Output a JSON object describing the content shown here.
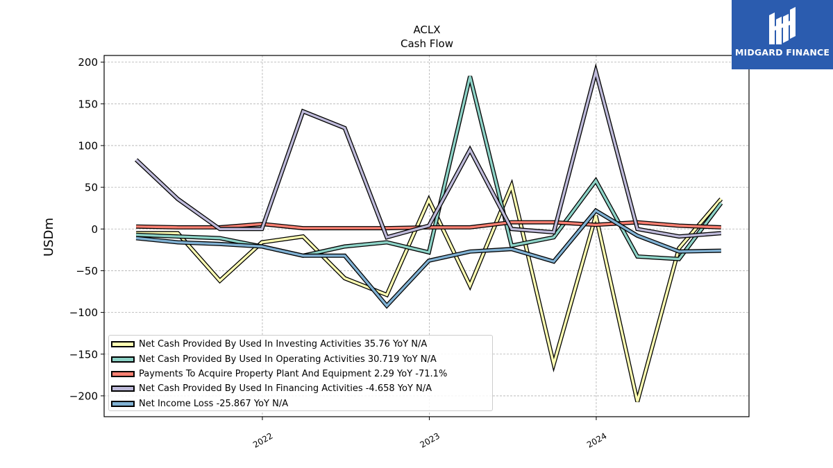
{
  "chart_data": {
    "type": "line",
    "title": "ACLX",
    "subtitle": "Cash Flow",
    "ylabel": "USDm",
    "xlabel": "",
    "ylim": [
      -225,
      208
    ],
    "xlim": [
      "2021-01-20",
      "2024-11-30"
    ],
    "yticks": [
      200,
      150,
      100,
      50,
      0,
      -50,
      -100,
      -150,
      -200
    ],
    "ytick_labels": [
      "200",
      "150",
      "100",
      "50",
      "0",
      "−50",
      "−100",
      "−150",
      "−200"
    ],
    "xticks": [
      "2022-01-01",
      "2023-01-01",
      "2024-01-01"
    ],
    "xtick_labels": [
      "2022",
      "2023",
      "2024"
    ],
    "grid": true,
    "legend_position": "bottom-left",
    "x": [
      "2021-03-31",
      "2021-06-30",
      "2021-09-30",
      "2021-12-31",
      "2022-03-31",
      "2022-06-30",
      "2022-09-30",
      "2022-12-31",
      "2023-03-31",
      "2023-06-30",
      "2023-09-30",
      "2023-12-31",
      "2024-03-31",
      "2024-06-30",
      "2024-09-30"
    ],
    "series": [
      {
        "name": "Net Cash Provided By Used In Investing Activities",
        "legend_label": "Net Cash Provided By Used In Investing Activities  35.76 YoY N/A",
        "color": "#ffffb3",
        "values": [
          -5,
          -5,
          -62,
          -16,
          -9,
          -59,
          -79,
          35,
          -68,
          52,
          -162,
          16,
          -207,
          -23,
          36
        ]
      },
      {
        "name": "Net Cash Provided By Used In Operating Activities",
        "legend_label": "Net Cash Provided By Used In Operating Activities  30.719 YoY N/A",
        "color": "#8dd3c7",
        "values": [
          -7,
          -9,
          -11,
          -21,
          -32,
          -21,
          -16,
          -28,
          183,
          -20,
          -10,
          58,
          -33,
          -36,
          31
        ]
      },
      {
        "name": "Payments To Acquire Property Plant And Equipment",
        "legend_label": "Payments To Acquire Property Plant And Equipment  2.29 YoY -71.1%",
        "color": "#fb8072",
        "values": [
          3,
          2,
          2,
          6,
          1,
          1,
          1,
          2,
          2,
          8,
          8,
          5,
          8,
          4,
          2
        ]
      },
      {
        "name": "Net Cash Provided By Used In Financing Activities",
        "legend_label": "Net Cash Provided By Used In Financing Activities  -4.658 YoY N/A",
        "color": "#bebada",
        "values": [
          83,
          36,
          0,
          0,
          141,
          121,
          -10,
          4,
          95,
          0,
          -4,
          189,
          0,
          -9,
          -5
        ]
      },
      {
        "name": "Net Income Loss",
        "legend_label": "Net Income Loss  -25.867 YoY N/A",
        "color": "#80b1d3",
        "values": [
          -11,
          -16,
          -18,
          -21,
          -32,
          -32,
          -92,
          -38,
          -27,
          -24,
          -39,
          22,
          -8,
          -27,
          -26
        ]
      }
    ]
  },
  "logo": {
    "text": "MIDGARD FINANCE",
    "background": "#2b5caf"
  }
}
